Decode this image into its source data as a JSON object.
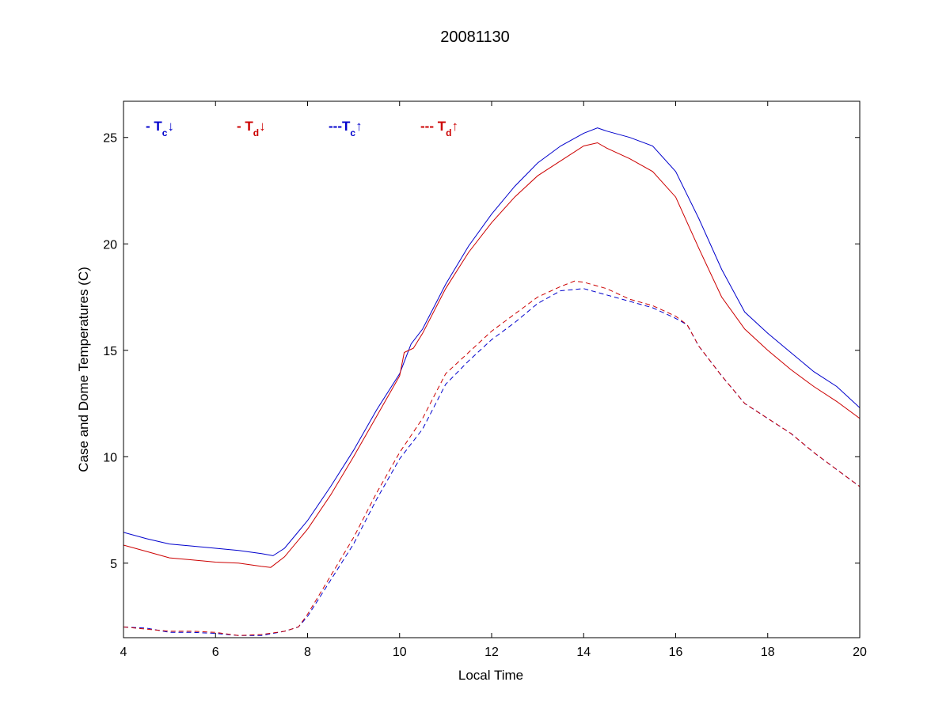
{
  "chart_data": {
    "type": "line",
    "title": "20081130",
    "xlabel": "Local Time",
    "ylabel": "Case and Dome Temperatures (C)",
    "xlim": [
      4,
      20
    ],
    "ylim": [
      1.5,
      26.7
    ],
    "xticks": [
      4,
      6,
      8,
      10,
      12,
      14,
      16,
      18,
      20
    ],
    "yticks": [
      5,
      10,
      15,
      20,
      25
    ],
    "grid": false,
    "legend_position": "top-left inside, single row",
    "series": [
      {
        "legend": {
          "prefix": "- T",
          "sub": "c",
          "arrow": "↓"
        },
        "color": "#0000cc",
        "dash": "solid",
        "points": [
          [
            4,
            6.45
          ],
          [
            4.5,
            6.15
          ],
          [
            5,
            5.9
          ],
          [
            5.5,
            5.8
          ],
          [
            6,
            5.7
          ],
          [
            6.5,
            5.6
          ],
          [
            7,
            5.45
          ],
          [
            7.25,
            5.35
          ],
          [
            7.5,
            5.7
          ],
          [
            8,
            7.0
          ],
          [
            8.5,
            8.6
          ],
          [
            9,
            10.3
          ],
          [
            9.5,
            12.2
          ],
          [
            10,
            13.9
          ],
          [
            10.25,
            15.3
          ],
          [
            10.5,
            16.0
          ],
          [
            11,
            18.1
          ],
          [
            11.5,
            19.9
          ],
          [
            12,
            21.4
          ],
          [
            12.5,
            22.7
          ],
          [
            13,
            23.8
          ],
          [
            13.5,
            24.6
          ],
          [
            14,
            25.2
          ],
          [
            14.3,
            25.45
          ],
          [
            14.5,
            25.3
          ],
          [
            15,
            25.0
          ],
          [
            15.5,
            24.6
          ],
          [
            16,
            23.4
          ],
          [
            16.5,
            21.2
          ],
          [
            17,
            18.8
          ],
          [
            17.5,
            16.8
          ],
          [
            18,
            15.8
          ],
          [
            18.5,
            14.9
          ],
          [
            19,
            14.0
          ],
          [
            19.5,
            13.3
          ],
          [
            20,
            12.3
          ]
        ]
      },
      {
        "legend": {
          "prefix": "- T",
          "sub": "d",
          "arrow": "↓"
        },
        "color": "#cc0000",
        "dash": "solid",
        "points": [
          [
            4,
            5.85
          ],
          [
            4.5,
            5.55
          ],
          [
            5,
            5.25
          ],
          [
            5.5,
            5.15
          ],
          [
            6,
            5.05
          ],
          [
            6.5,
            5.0
          ],
          [
            7,
            4.85
          ],
          [
            7.2,
            4.8
          ],
          [
            7.5,
            5.3
          ],
          [
            8,
            6.6
          ],
          [
            8.5,
            8.2
          ],
          [
            9,
            10.0
          ],
          [
            9.5,
            11.9
          ],
          [
            10,
            13.8
          ],
          [
            10.1,
            14.9
          ],
          [
            10.3,
            15.1
          ],
          [
            10.5,
            15.8
          ],
          [
            11,
            17.9
          ],
          [
            11.5,
            19.6
          ],
          [
            12,
            21.0
          ],
          [
            12.5,
            22.2
          ],
          [
            13,
            23.2
          ],
          [
            13.5,
            23.9
          ],
          [
            14,
            24.6
          ],
          [
            14.3,
            24.75
          ],
          [
            14.5,
            24.5
          ],
          [
            15,
            24.0
          ],
          [
            15.5,
            23.4
          ],
          [
            16,
            22.2
          ],
          [
            16.5,
            19.8
          ],
          [
            17,
            17.5
          ],
          [
            17.5,
            16.0
          ],
          [
            18,
            15.0
          ],
          [
            18.5,
            14.1
          ],
          [
            19,
            13.3
          ],
          [
            19.5,
            12.6
          ],
          [
            20,
            11.8
          ]
        ]
      },
      {
        "legend": {
          "prefix": "---T",
          "sub": "c",
          "arrow": "↑"
        },
        "color": "#0000cc",
        "dash": "dashed",
        "points": [
          [
            4,
            2.0
          ],
          [
            4.5,
            1.95
          ],
          [
            5,
            1.75
          ],
          [
            5.5,
            1.75
          ],
          [
            6,
            1.7
          ],
          [
            6.5,
            1.6
          ],
          [
            7,
            1.6
          ],
          [
            7.5,
            1.8
          ],
          [
            7.8,
            2.0
          ],
          [
            8,
            2.5
          ],
          [
            8.5,
            4.2
          ],
          [
            9,
            5.9
          ],
          [
            9.5,
            8.0
          ],
          [
            10,
            9.9
          ],
          [
            10.5,
            11.3
          ],
          [
            11,
            13.4
          ],
          [
            11.5,
            14.5
          ],
          [
            12,
            15.5
          ],
          [
            12.5,
            16.3
          ],
          [
            13,
            17.2
          ],
          [
            13.5,
            17.8
          ],
          [
            14,
            17.9
          ],
          [
            14.5,
            17.6
          ],
          [
            15,
            17.3
          ],
          [
            15.5,
            17.0
          ],
          [
            16,
            16.5
          ],
          [
            16.25,
            16.2
          ],
          [
            16.5,
            15.2
          ],
          [
            17,
            13.8
          ],
          [
            17.5,
            12.5
          ],
          [
            18,
            11.8
          ],
          [
            18.5,
            11.1
          ],
          [
            19,
            10.2
          ],
          [
            19.5,
            9.4
          ],
          [
            20,
            8.6
          ]
        ]
      },
      {
        "legend": {
          "prefix": "--- T",
          "sub": "d",
          "arrow": "↑"
        },
        "color": "#cc0000",
        "dash": "dashed",
        "points": [
          [
            4,
            2.0
          ],
          [
            4.5,
            1.9
          ],
          [
            5,
            1.8
          ],
          [
            5.5,
            1.8
          ],
          [
            6,
            1.75
          ],
          [
            6.5,
            1.6
          ],
          [
            7,
            1.65
          ],
          [
            7.5,
            1.8
          ],
          [
            7.8,
            2.0
          ],
          [
            8,
            2.6
          ],
          [
            8.5,
            4.4
          ],
          [
            9,
            6.2
          ],
          [
            9.5,
            8.3
          ],
          [
            10,
            10.2
          ],
          [
            10.5,
            11.8
          ],
          [
            11,
            13.9
          ],
          [
            11.5,
            14.9
          ],
          [
            12,
            15.9
          ],
          [
            12.5,
            16.7
          ],
          [
            13,
            17.5
          ],
          [
            13.5,
            18.0
          ],
          [
            13.8,
            18.25
          ],
          [
            14,
            18.2
          ],
          [
            14.5,
            17.9
          ],
          [
            15,
            17.4
          ],
          [
            15.5,
            17.1
          ],
          [
            16,
            16.6
          ],
          [
            16.25,
            16.2
          ],
          [
            16.5,
            15.2
          ],
          [
            17,
            13.8
          ],
          [
            17.5,
            12.5
          ],
          [
            18,
            11.8
          ],
          [
            18.5,
            11.1
          ],
          [
            19,
            10.2
          ],
          [
            19.5,
            9.4
          ],
          [
            20,
            8.6
          ]
        ]
      }
    ]
  }
}
